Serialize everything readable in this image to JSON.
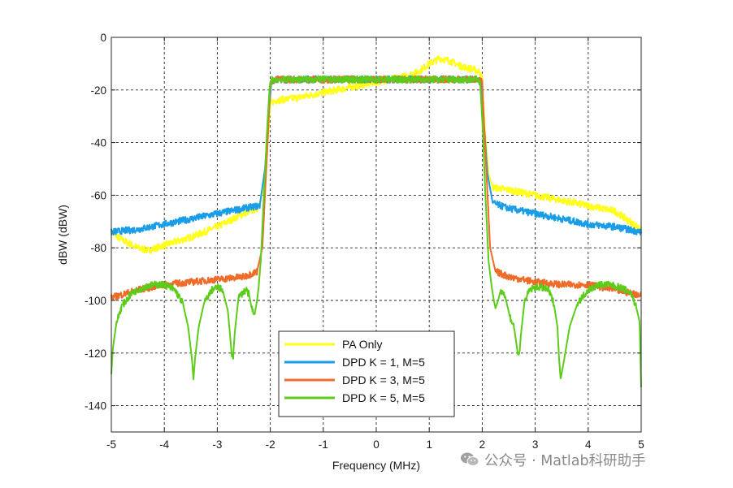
{
  "chart_data": {
    "type": "line",
    "title": "",
    "xlabel": "Frequency (MHz)",
    "ylabel": "dBW (dBW)",
    "xlim": [
      -5,
      5
    ],
    "ylim": [
      -150,
      0
    ],
    "xticks": [
      -5,
      -4,
      -3,
      -2,
      -1,
      0,
      1,
      2,
      3,
      4,
      5
    ],
    "yticks": [
      0,
      -20,
      -40,
      -60,
      -80,
      -100,
      -120,
      -140
    ],
    "grid": true,
    "legend_position": "bottom-center",
    "series": [
      {
        "name": "PA Only",
        "color": "#ffff1a",
        "x": [
          -5,
          -4.8,
          -4.5,
          -4.3,
          -4,
          -3.5,
          -3,
          -2.5,
          -2.25,
          -2.12,
          -2.05,
          -2.0,
          -1.9,
          -1.5,
          -1,
          -0.5,
          0,
          0.5,
          0.8,
          1.0,
          1.2,
          1.4,
          1.6,
          1.8,
          1.95,
          2.0,
          2.05,
          2.12,
          2.2,
          2.5,
          3,
          3.5,
          4,
          4.5,
          5
        ],
        "y": [
          -74,
          -77,
          -80,
          -81,
          -79,
          -76,
          -72,
          -67,
          -65,
          -58,
          -40,
          -25,
          -24,
          -23,
          -21,
          -19,
          -17,
          -15,
          -13,
          -10,
          -8,
          -9,
          -11,
          -12,
          -13,
          -16,
          -35,
          -52,
          -57,
          -58,
          -60,
          -62,
          -64,
          -66,
          -73
        ]
      },
      {
        "name": "DPD K = 1, M=5",
        "color": "#1a9de8",
        "x": [
          -5,
          -4.5,
          -4,
          -3.5,
          -3,
          -2.5,
          -2.2,
          -2.1,
          -2.03,
          -1.98,
          -1.9,
          -1.5,
          -1,
          -0.5,
          0,
          0.5,
          1,
          1.5,
          1.9,
          1.98,
          2.03,
          2.1,
          2.2,
          2.5,
          3,
          3.5,
          4,
          4.5,
          5
        ],
        "y": [
          -74,
          -73,
          -71,
          -69,
          -67,
          -65,
          -64,
          -50,
          -30,
          -17,
          -16,
          -16,
          -16,
          -16,
          -16,
          -16,
          -16,
          -16,
          -16,
          -17,
          -32,
          -52,
          -63,
          -65,
          -67,
          -69,
          -71,
          -72,
          -74
        ]
      },
      {
        "name": "DPD K = 3, M=5",
        "color": "#f06a28",
        "x": [
          -5,
          -4.5,
          -4,
          -3.5,
          -3,
          -2.5,
          -2.25,
          -2.15,
          -2.05,
          -2.0,
          -1.9,
          -1.5,
          -1,
          -0.5,
          0,
          0.5,
          1,
          1.5,
          1.9,
          2.0,
          2.05,
          2.15,
          2.25,
          2.5,
          3,
          3.5,
          4,
          4.5,
          5
        ],
        "y": [
          -99,
          -96,
          -94,
          -93,
          -92,
          -91,
          -89,
          -80,
          -40,
          -17,
          -16,
          -16,
          -16,
          -16,
          -16,
          -16,
          -16,
          -16,
          -16,
          -17,
          -40,
          -80,
          -89,
          -91,
          -93,
          -94,
          -94,
          -96,
          -98
        ]
      },
      {
        "name": "DPD K = 5, M=5",
        "color": "#5ccc1a",
        "x": [
          -5,
          -4.97,
          -4.9,
          -4.8,
          -4.6,
          -4.4,
          -4.2,
          -4.0,
          -3.8,
          -3.65,
          -3.55,
          -3.48,
          -3.45,
          -3.42,
          -3.35,
          -3.25,
          -3.1,
          -3.0,
          -2.9,
          -2.8,
          -2.73,
          -2.7,
          -2.67,
          -2.6,
          -2.52,
          -2.45,
          -2.4,
          -2.35,
          -2.3,
          -2.25,
          -2.22,
          -2.18,
          -2.12,
          -2.06,
          -2.01,
          -1.96,
          -1.9,
          -1.5,
          -1,
          -0.5,
          0,
          0.5,
          1,
          1.5,
          1.9,
          1.96,
          2.01,
          2.06,
          2.12,
          2.18,
          2.22,
          2.25,
          2.3,
          2.35,
          2.4,
          2.45,
          2.52,
          2.6,
          2.67,
          2.7,
          2.73,
          2.8,
          2.9,
          3.0,
          3.1,
          3.25,
          3.35,
          3.42,
          3.45,
          3.48,
          3.55,
          3.65,
          3.8,
          4.0,
          4.2,
          4.4,
          4.6,
          4.8,
          4.9,
          4.97,
          5
        ],
        "y": [
          -128,
          -118,
          -108,
          -102,
          -97,
          -95,
          -94,
          -94,
          -96,
          -101,
          -110,
          -122,
          -130,
          -122,
          -110,
          -101,
          -96,
          -95,
          -96,
          -104,
          -120,
          -121,
          -112,
          -99,
          -97,
          -96,
          -98,
          -103,
          -106,
          -100,
          -95,
          -85,
          -60,
          -35,
          -18,
          -16,
          -16,
          -16,
          -16,
          -16,
          -16,
          -16,
          -16,
          -16,
          -16,
          -17,
          -35,
          -60,
          -85,
          -95,
          -100,
          -103,
          -100,
          -96,
          -97,
          -100,
          -106,
          -110,
          -120,
          -121,
          -113,
          -100,
          -96,
          -95,
          -95,
          -96,
          -101,
          -110,
          -122,
          -130,
          -122,
          -110,
          -101,
          -96,
          -94,
          -94,
          -95,
          -97,
          -102,
          -108,
          -133
        ]
      }
    ]
  },
  "watermark": {
    "text": "公众号 · Matlab科研助手",
    "icon": "wechat-icon"
  }
}
